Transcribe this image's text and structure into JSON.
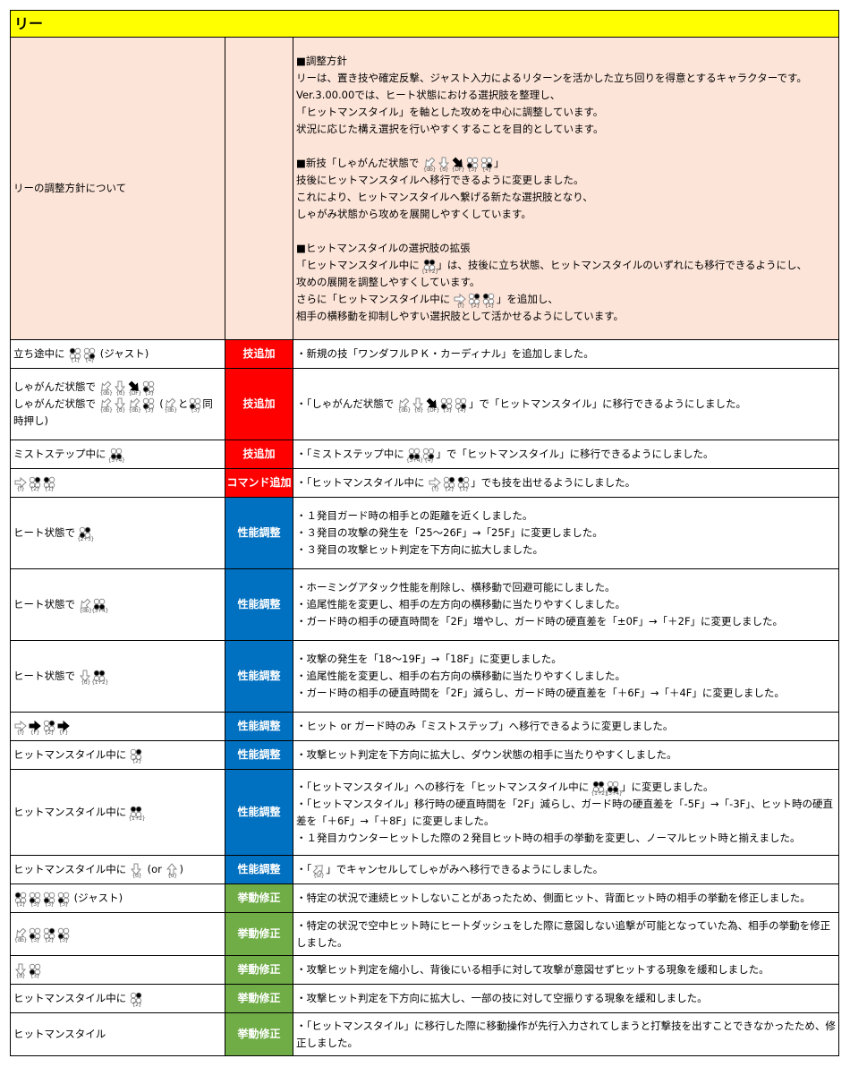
{
  "title": "リー",
  "colors": {
    "title_bg": "#ffff00",
    "intro_bg": "#fde4d8",
    "tag_add": "#ff0000",
    "tag_perf": "#0070c0",
    "tag_fix": "#70ad47"
  },
  "notation": {
    "buttons": "2x2 dot grid, filled dots = pressed (1 top-left, 2 top-right, 3 bottom-left, 4 bottom-right)",
    "arrows": "lowercase = hollow arrow, uppercase = solid arrow"
  },
  "intro": {
    "label": "リーの調整方針について",
    "lines": [
      "■調整方針",
      "リーは、置き技や確定反撃、ジャスト入力によるリターンを活かした立ち回りを得意とするキャラクターです。",
      "Ver.3.00.00では、ヒート状態における選択肢を整理し、",
      "「ヒットマンスタイル」を軸とした攻めを中心に調整しています。",
      "状況に応じた構え選択を行いやすくすることを目的としています。",
      "",
      "■新技「しゃがんだ状態で {db}{d}{DF}{3}{4}」",
      "技後にヒットマンスタイルへ移行できるように変更しました。",
      "これにより、ヒットマンスタイルへ繋げる新たな選択肢となり、",
      "しゃがみ状態から攻めを展開しやすくしています。",
      "",
      "■ヒットマンスタイルの選択肢の拡張",
      "「ヒットマンスタイル中に {1+2}」は、技後に立ち状態、ヒットマンスタイルのいずれにも移行できるようにし、",
      "攻めの展開を調整しやすくしています。",
      "さらに「ヒットマンスタイル中に {f}{2}{1}」を追加し、",
      "相手の横移動を抑制しやすい選択肢として活かせるようにしています。"
    ]
  },
  "rows": [
    {
      "move": [
        "立ち途中に {1}{4} (ジャスト)"
      ],
      "tag": "技追加",
      "type": "red",
      "notes": [
        "・新規の技「ワンダフルＰＫ・カーディナル」を追加しました。"
      ]
    },
    {
      "move": [
        "しゃがんだ状態で {db}{d}{DF}{3}",
        "しゃがんだ状態で {db}{d}{db}{3} ({db}と{3}同時押し)"
      ],
      "tag": "技追加",
      "type": "red",
      "notes": [
        "・「しゃがんだ状態で {db}{d}{DF}{3}{4}」で「ヒットマンスタイル」に移行できるようにしました。"
      ]
    },
    {
      "move": [
        "ミストステップ中に {3+4}"
      ],
      "tag": "技追加",
      "type": "red",
      "notes": [
        "・「ミストステップ中に {3+4}{4}」で「ヒットマンスタイル」に移行できるようにしました。"
      ]
    },
    {
      "move": [
        "{f}{2}{1}"
      ],
      "tag": "コマンド追加",
      "type": "red",
      "notes": [
        "・「ヒットマンスタイル中に {f}{2}{1}」でも技を出せるようにしました。"
      ]
    },
    {
      "move": [
        "ヒート状態で {2+3}"
      ],
      "tag": "性能調整",
      "type": "blue",
      "notes": [
        "・１発目ガード時の相手との距離を近くしました。",
        "・３発目の攻撃の発生を「25～26F」→「25F」に変更しました。",
        "・３発目の攻撃ヒット判定を下方向に拡大しました。"
      ]
    },
    {
      "move": [
        "ヒート状態で {db}{3+4}"
      ],
      "tag": "性能調整",
      "type": "blue",
      "notes": [
        "・ホーミングアタック性能を削除し、横移動で回避可能にしました。",
        "・追尾性能を変更し、相手の左方向の横移動に当たりやすくしました。",
        "・ガード時の相手の硬直時間を「2F」増やし、ガード時の硬直差を「±0F」→「＋2F」に変更しました。"
      ]
    },
    {
      "move": [
        "ヒート状態で {d}{1+2}"
      ],
      "tag": "性能調整",
      "type": "blue",
      "notes": [
        "・攻撃の発生を「18～19F」→「18F」に変更しました。",
        "・追尾性能を変更し、相手の右方向の横移動に当たりやすくしました。",
        "・ガード時の相手の硬直時間を「2F」減らし、ガード時の硬直差を「＋6F」→「＋4F」に変更しました。"
      ]
    },
    {
      "move": [
        "{f}{F}{2}{F}"
      ],
      "tag": "性能調整",
      "type": "blue",
      "notes": [
        "・ヒット or ガード時のみ「ミストステップ」へ移行できるように変更しました。"
      ]
    },
    {
      "move": [
        "ヒットマンスタイル中に {2}"
      ],
      "tag": "性能調整",
      "type": "blue",
      "notes": [
        "・攻撃ヒット判定を下方向に拡大し、ダウン状態の相手に当たりやすくしました。"
      ]
    },
    {
      "move": [
        "ヒットマンスタイル中に {1+2}"
      ],
      "tag": "性能調整",
      "type": "blue",
      "notes": [
        "・「ヒットマンスタイル」への移行を「ヒットマンスタイル中に {1+2}{3+4}」に変更しました。",
        "・「ヒットマンスタイル」移行時の硬直時間を「2F」減らし、ガード時の硬直差を「-5F」→「-3F」、ヒット時の硬直差を「＋6F」→「＋8F」に変更しました。",
        "・１発目カウンターヒットした際の２発目ヒット時の相手の挙動を変更し、ノーマルヒット時と揃えました。"
      ]
    },
    {
      "move": [
        "ヒットマンスタイル中に {d} (or {u})"
      ],
      "tag": "性能調整",
      "type": "blue",
      "notes": [
        "・「{uf}」でキャンセルしてしゃがみへ移行できるようにしました。"
      ]
    },
    {
      "move": [
        "{1}{3}{3}{3} (ジャスト)"
      ],
      "tag": "挙動修正",
      "type": "green",
      "notes": [
        "・特定の状況で連続ヒットしないことがあったため、側面ヒット、背面ヒット時の相手の挙動を修正しました。"
      ]
    },
    {
      "move": [
        "{db}{3}{2}{3}"
      ],
      "tag": "挙動修正",
      "type": "green",
      "notes": [
        "・特定の状況で空中ヒット時にヒートダッシュをした際に意図しない追撃が可能となっていた為、相手の挙動を修正しました。"
      ]
    },
    {
      "move": [
        "{d}{3}"
      ],
      "tag": "挙動修正",
      "type": "green",
      "notes": [
        "・攻撃ヒット判定を縮小し、背後にいる相手に対して攻撃が意図せずヒットする現象を緩和しました。"
      ]
    },
    {
      "move": [
        "ヒットマンスタイル中に {2}"
      ],
      "tag": "挙動修正",
      "type": "green",
      "notes": [
        "・攻撃ヒット判定を下方向に拡大し、一部の技に対して空振りする現象を緩和しました。"
      ]
    },
    {
      "move": [
        "ヒットマンスタイル"
      ],
      "tag": "挙動修正",
      "type": "green",
      "notes": [
        "・「ヒットマンスタイル」に移行した際に移動操作が先行入力されてしまうと打撃技を出すことできなかったため、修正しました。"
      ]
    }
  ]
}
